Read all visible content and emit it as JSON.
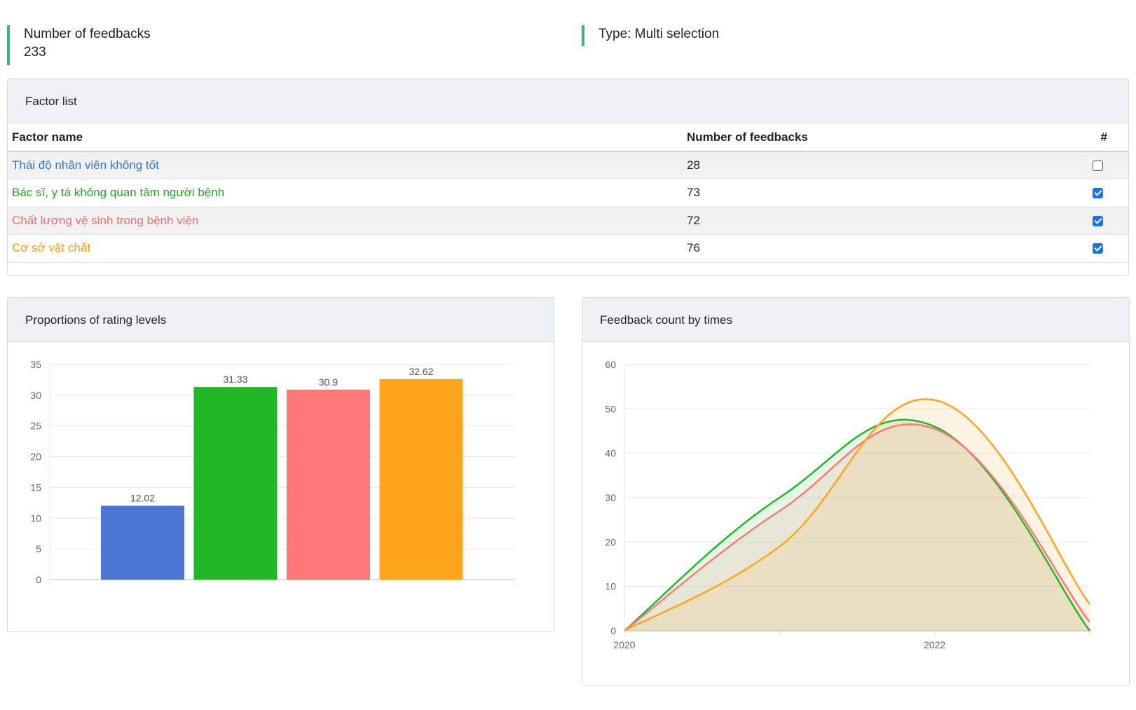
{
  "summary": {
    "feedback_label": "Number of feedbacks",
    "feedback_count": "233",
    "type_label": "Type: Multi selection"
  },
  "factor_list": {
    "title": "Factor list",
    "columns": [
      "Factor name",
      "Number of feedbacks",
      "#"
    ],
    "rows": [
      {
        "name": "Thái độ nhân viên không tốt",
        "count": "28",
        "checked": false,
        "color": "#3b6fd1"
      },
      {
        "name": "Bác sĩ, y tá không quan tâm người bệnh",
        "count": "73",
        "checked": true,
        "color": "#22a722"
      },
      {
        "name": "Chất lượng vệ sinh trong bệnh viện",
        "count": "72",
        "checked": true,
        "color": "#f26b6b"
      },
      {
        "name": "Cơ sở vật chất",
        "count": "76",
        "checked": true,
        "color": "#f59d1b"
      }
    ]
  },
  "rating_chart": {
    "title": "Proportions of rating levels"
  },
  "time_chart": {
    "title": "Feedback count by times"
  },
  "chart_data": [
    {
      "type": "bar",
      "title": "",
      "categories": [
        "",
        "",
        "",
        ""
      ],
      "values": [
        12.02,
        31.33,
        30.9,
        32.62
      ],
      "colors": [
        "#4a76d4",
        "#21b726",
        "#ff7878",
        "#ffa41b"
      ],
      "yticks": [
        0,
        5,
        10,
        15,
        20,
        25,
        30,
        35
      ],
      "ylim": [
        0,
        35
      ],
      "grid": true,
      "data_labels": true
    },
    {
      "type": "area",
      "title": "",
      "x": [
        2020,
        2021,
        2022,
        2023
      ],
      "xticks": [
        2020,
        2022
      ],
      "ylim": [
        0,
        60
      ],
      "yticks": [
        0,
        10,
        20,
        30,
        40,
        50,
        60
      ],
      "grid": true,
      "series": [
        {
          "color": "#21b726",
          "values": [
            0,
            30,
            46,
            0
          ]
        },
        {
          "color": "#ff7878",
          "values": [
            0,
            27,
            45.5,
            2
          ]
        },
        {
          "color": "#ffa41b",
          "values": [
            0,
            19,
            52,
            6
          ]
        }
      ]
    }
  ]
}
